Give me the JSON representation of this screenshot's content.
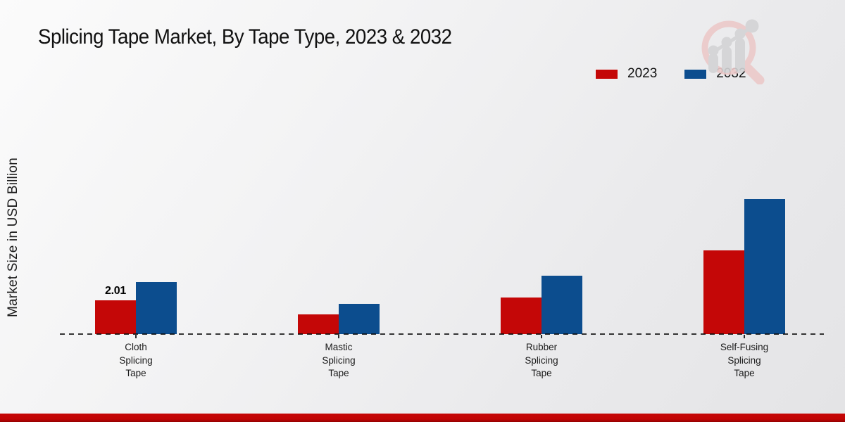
{
  "page": {
    "title": "Splicing Tape Market, By Tape Type, 2023 & 2032",
    "y_axis_label": "Market Size in USD Billion"
  },
  "legend": [
    {
      "label": "2023",
      "color": "#c40707"
    },
    {
      "label": "2032",
      "color": "#0c4d8e"
    }
  ],
  "chart_data": {
    "type": "bar",
    "title": "Splicing Tape Market, By Tape Type, 2023 & 2032",
    "xlabel": "",
    "ylabel": "Market Size in USD Billion",
    "categories": [
      "Cloth Splicing Tape",
      "Mastic Splicing Tape",
      "Rubber Splicing Tape",
      "Self-Fusing Splicing Tape"
    ],
    "series": [
      {
        "name": "2023",
        "color": "#c40707",
        "values": [
          2.01,
          1.17,
          2.2,
          5.0
        ]
      },
      {
        "name": "2032",
        "color": "#0c4d8e",
        "values": [
          3.1,
          1.8,
          3.5,
          8.05
        ]
      }
    ],
    "data_label": {
      "series": "2023",
      "category": "Cloth Splicing Tape",
      "text": "2.01"
    },
    "baseline_style": "dashed",
    "grid": false,
    "legend_position": "top-right",
    "ylim": [
      0,
      9
    ]
  },
  "colors": {
    "series_2023": "#c40707",
    "series_2032": "#0c4d8e",
    "footer_band": "#c20404",
    "background": "#ececee",
    "text": "#1a1a1a"
  },
  "branding": {
    "logo_icon": "magnifier-analytics-icon"
  }
}
